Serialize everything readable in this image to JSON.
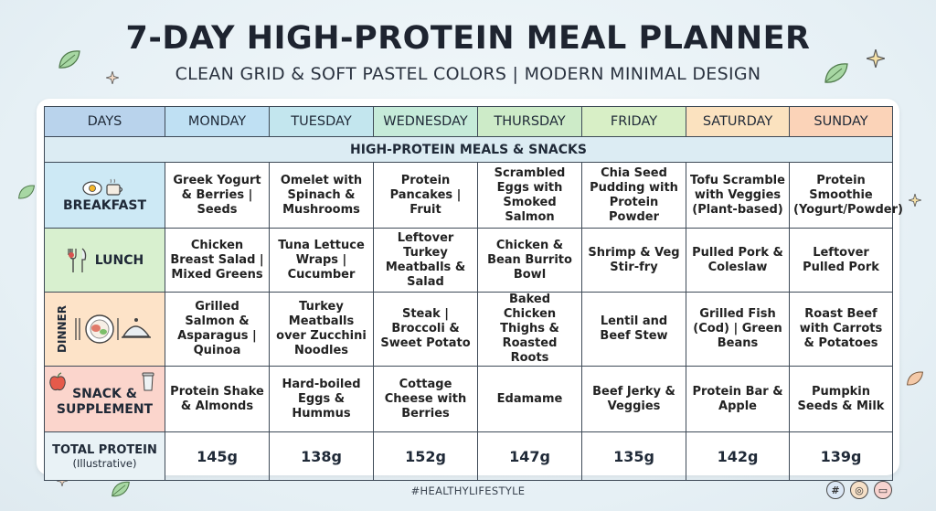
{
  "title": "7-DAY HIGH-PROTEIN MEAL PLANNER",
  "subtitle": "CLEAN GRID & SOFT PASTEL COLORS | MODERN MINIMAL DESIGN",
  "colors": {
    "days": "#b9d3ec",
    "monday": "#bfe0f3",
    "tuesday": "#c3e6ee",
    "wednesday": "#c6ebd9",
    "thursday": "#cdebc8",
    "friday": "#d8efc6",
    "saturday": "#fbe2bf",
    "sunday": "#fbd3b8",
    "breakfast": "#cde9f5",
    "lunch": "#d8f0cf",
    "dinner": "#fde3c8",
    "snack": "#fbd5cc",
    "total": "#e9f2f6"
  },
  "header": {
    "days": "DAYS",
    "columns": [
      "MONDAY",
      "TUESDAY",
      "WEDNESDAY",
      "THURSDAY",
      "FRIDAY",
      "SATURDAY",
      "SUNDAY"
    ]
  },
  "banner": "HIGH-PROTEIN MEALS & SNACKS",
  "rows": {
    "breakfast": {
      "label": "BREAKFAST",
      "icon": "egg-coffee-icon",
      "cells": [
        "Greek Yogurt & Berries | Seeds",
        "Omelet with Spinach & Mushrooms",
        "Protein Pancakes | Fruit",
        "Scrambled Eggs with Smoked Salmon",
        "Chia Seed Pudding with Protein Powder",
        "Tofu Scramble with Veggies (Plant-based)",
        "Protein Smoothie (Yogurt/Powder)"
      ]
    },
    "lunch": {
      "label": "LUNCH",
      "icon": "fork-knife-icon",
      "cells": [
        "Chicken Breast Salad | Mixed Greens",
        "Tuna Lettuce Wraps | Cucumber",
        "Leftover Turkey Meatballs & Salad",
        "Chicken & Bean Burrito Bowl",
        "Shrimp & Veg Stir-fry",
        "Pulled Pork & Coleslaw",
        "Leftover Pulled Pork"
      ]
    },
    "dinner": {
      "label": "DINNER",
      "icon": "plate-cloche-icon",
      "cells": [
        "Grilled Salmon & Asparagus | Quinoa",
        "Turkey Meatballs over Zucchini Noodles",
        "Steak | Broccoli & Sweet Potato",
        "Baked Chicken Thighs & Roasted Roots",
        "Lentil and Beef Stew",
        "Grilled Fish (Cod) | Green Beans",
        "Roast Beef with Carrots & Potatoes"
      ]
    },
    "snack": {
      "label_1": "SNACK &",
      "label_2": "SUPPLEMENT",
      "icon": "apple-shaker-icon",
      "cells": [
        "Protein Shake & Almonds",
        "Hard-boiled Eggs & Hummus",
        "Cottage Cheese with Berries",
        "Edamame",
        "Beef Jerky & Veggies",
        "Protein Bar & Apple",
        "Pumpkin Seeds & Milk"
      ]
    },
    "total": {
      "label": "TOTAL PROTEIN",
      "note": "(Illustrative)",
      "cells": [
        "145g",
        "138g",
        "152g",
        "147g",
        "135g",
        "142g",
        "139g"
      ]
    }
  },
  "footer": "#HEALTHYLIFESTYLE",
  "social": [
    "#",
    "◎",
    "▭"
  ]
}
